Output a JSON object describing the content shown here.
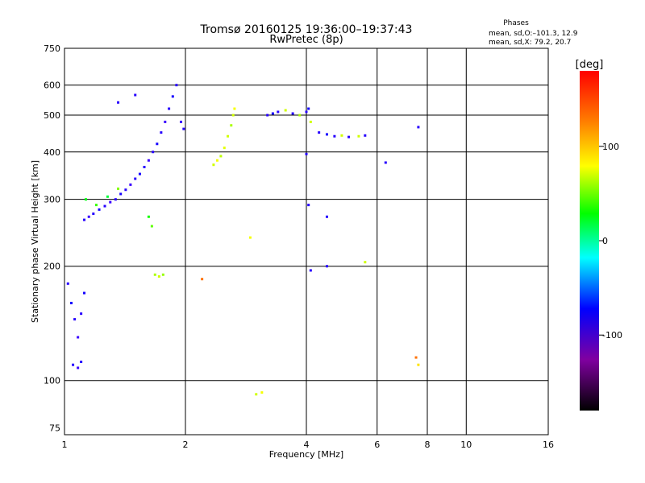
{
  "chart_data": {
    "type": "scatter",
    "title": "Tromsø 20160125 19:36:00–19:37:43",
    "subtitle": "RwPretec (8p)",
    "phase_box": {
      "header": "Phases",
      "line1": "mean, sd,O:–101.3, 12.9",
      "line2": "mean, sd,X:  79.2, 20.7"
    },
    "xlabel": "Frequency [MHz]",
    "ylabel": "Stationary phase Virtual Height [km]",
    "x_scale": "log",
    "y_scale": "log",
    "xlim": [
      1,
      16
    ],
    "ylim": [
      72,
      750
    ],
    "x_ticks": [
      1,
      2,
      4,
      6,
      8,
      10,
      16
    ],
    "y_ticks": [
      75,
      100,
      200,
      300,
      400,
      500,
      600,
      750
    ],
    "grid": true,
    "colorbar": {
      "label": "[deg]",
      "range": [
        -180,
        180
      ],
      "ticks": [
        100,
        0,
        -100
      ]
    },
    "series": [
      {
        "values": [
          [
            1.12,
            265,
            -100
          ],
          [
            1.15,
            270,
            -105
          ],
          [
            1.18,
            275,
            -100
          ],
          [
            1.22,
            282,
            -95
          ],
          [
            1.26,
            288,
            -100
          ],
          [
            1.3,
            295,
            -105
          ],
          [
            1.34,
            300,
            -100
          ],
          [
            1.38,
            310,
            -95
          ],
          [
            1.42,
            318,
            -100
          ],
          [
            1.46,
            328,
            -105
          ],
          [
            1.5,
            340,
            -100
          ],
          [
            1.54,
            350,
            -95
          ],
          [
            1.58,
            365,
            -100
          ],
          [
            1.62,
            380,
            -105
          ],
          [
            1.66,
            400,
            -100
          ],
          [
            1.7,
            420,
            -95
          ],
          [
            1.74,
            450,
            -100
          ],
          [
            1.78,
            480,
            -105
          ],
          [
            1.82,
            520,
            -100
          ],
          [
            1.86,
            560,
            -95
          ],
          [
            1.9,
            600,
            -100
          ],
          [
            1.95,
            480,
            -105
          ],
          [
            1.98,
            460,
            -100
          ],
          [
            1.13,
            300,
            40
          ],
          [
            1.2,
            290,
            60
          ],
          [
            1.28,
            305,
            30
          ],
          [
            1.36,
            320,
            80
          ],
          [
            1.62,
            270,
            50
          ],
          [
            1.65,
            255,
            70
          ],
          [
            1.68,
            190,
            90
          ],
          [
            1.72,
            188,
            100
          ],
          [
            1.76,
            190,
            85
          ],
          [
            2.35,
            370,
            100
          ],
          [
            2.4,
            380,
            110
          ],
          [
            2.45,
            390,
            95
          ],
          [
            2.5,
            410,
            105
          ],
          [
            2.55,
            440,
            100
          ],
          [
            2.6,
            470,
            90
          ],
          [
            2.63,
            500,
            100
          ],
          [
            2.65,
            520,
            110
          ],
          [
            3.2,
            500,
            -100
          ],
          [
            3.3,
            505,
            -95
          ],
          [
            3.4,
            510,
            -100
          ],
          [
            3.55,
            515,
            100
          ],
          [
            3.7,
            505,
            -100
          ],
          [
            3.85,
            500,
            90
          ],
          [
            4.0,
            510,
            -100
          ],
          [
            4.05,
            520,
            -95
          ],
          [
            4.1,
            480,
            100
          ],
          [
            4.3,
            450,
            -100
          ],
          [
            4.5,
            445,
            -95
          ],
          [
            4.7,
            440,
            -100
          ],
          [
            4.9,
            442,
            100
          ],
          [
            5.1,
            438,
            -100
          ],
          [
            5.4,
            440,
            100
          ],
          [
            5.6,
            442,
            -100
          ],
          [
            1.02,
            180,
            -100
          ],
          [
            1.04,
            160,
            -95
          ],
          [
            1.06,
            145,
            -100
          ],
          [
            1.08,
            130,
            -105
          ],
          [
            1.1,
            150,
            -100
          ],
          [
            1.12,
            170,
            -95
          ],
          [
            1.05,
            110,
            -100
          ],
          [
            1.08,
            108,
            -105
          ],
          [
            1.1,
            112,
            -100
          ],
          [
            3.0,
            92,
            100
          ],
          [
            3.1,
            93,
            110
          ],
          [
            4.0,
            395,
            -100
          ],
          [
            4.05,
            290,
            -100
          ],
          [
            4.5,
            270,
            -100
          ],
          [
            6.3,
            375,
            -100
          ],
          [
            7.6,
            465,
            -100
          ],
          [
            4.1,
            195,
            -100
          ],
          [
            4.5,
            200,
            -100
          ],
          [
            7.5,
            115,
            150
          ],
          [
            7.6,
            110,
            120
          ],
          [
            1.36,
            540,
            -100
          ],
          [
            1.5,
            565,
            -100
          ],
          [
            2.2,
            185,
            150
          ],
          [
            2.9,
            238,
            110
          ],
          [
            5.6,
            205,
            100
          ]
        ]
      }
    ]
  }
}
